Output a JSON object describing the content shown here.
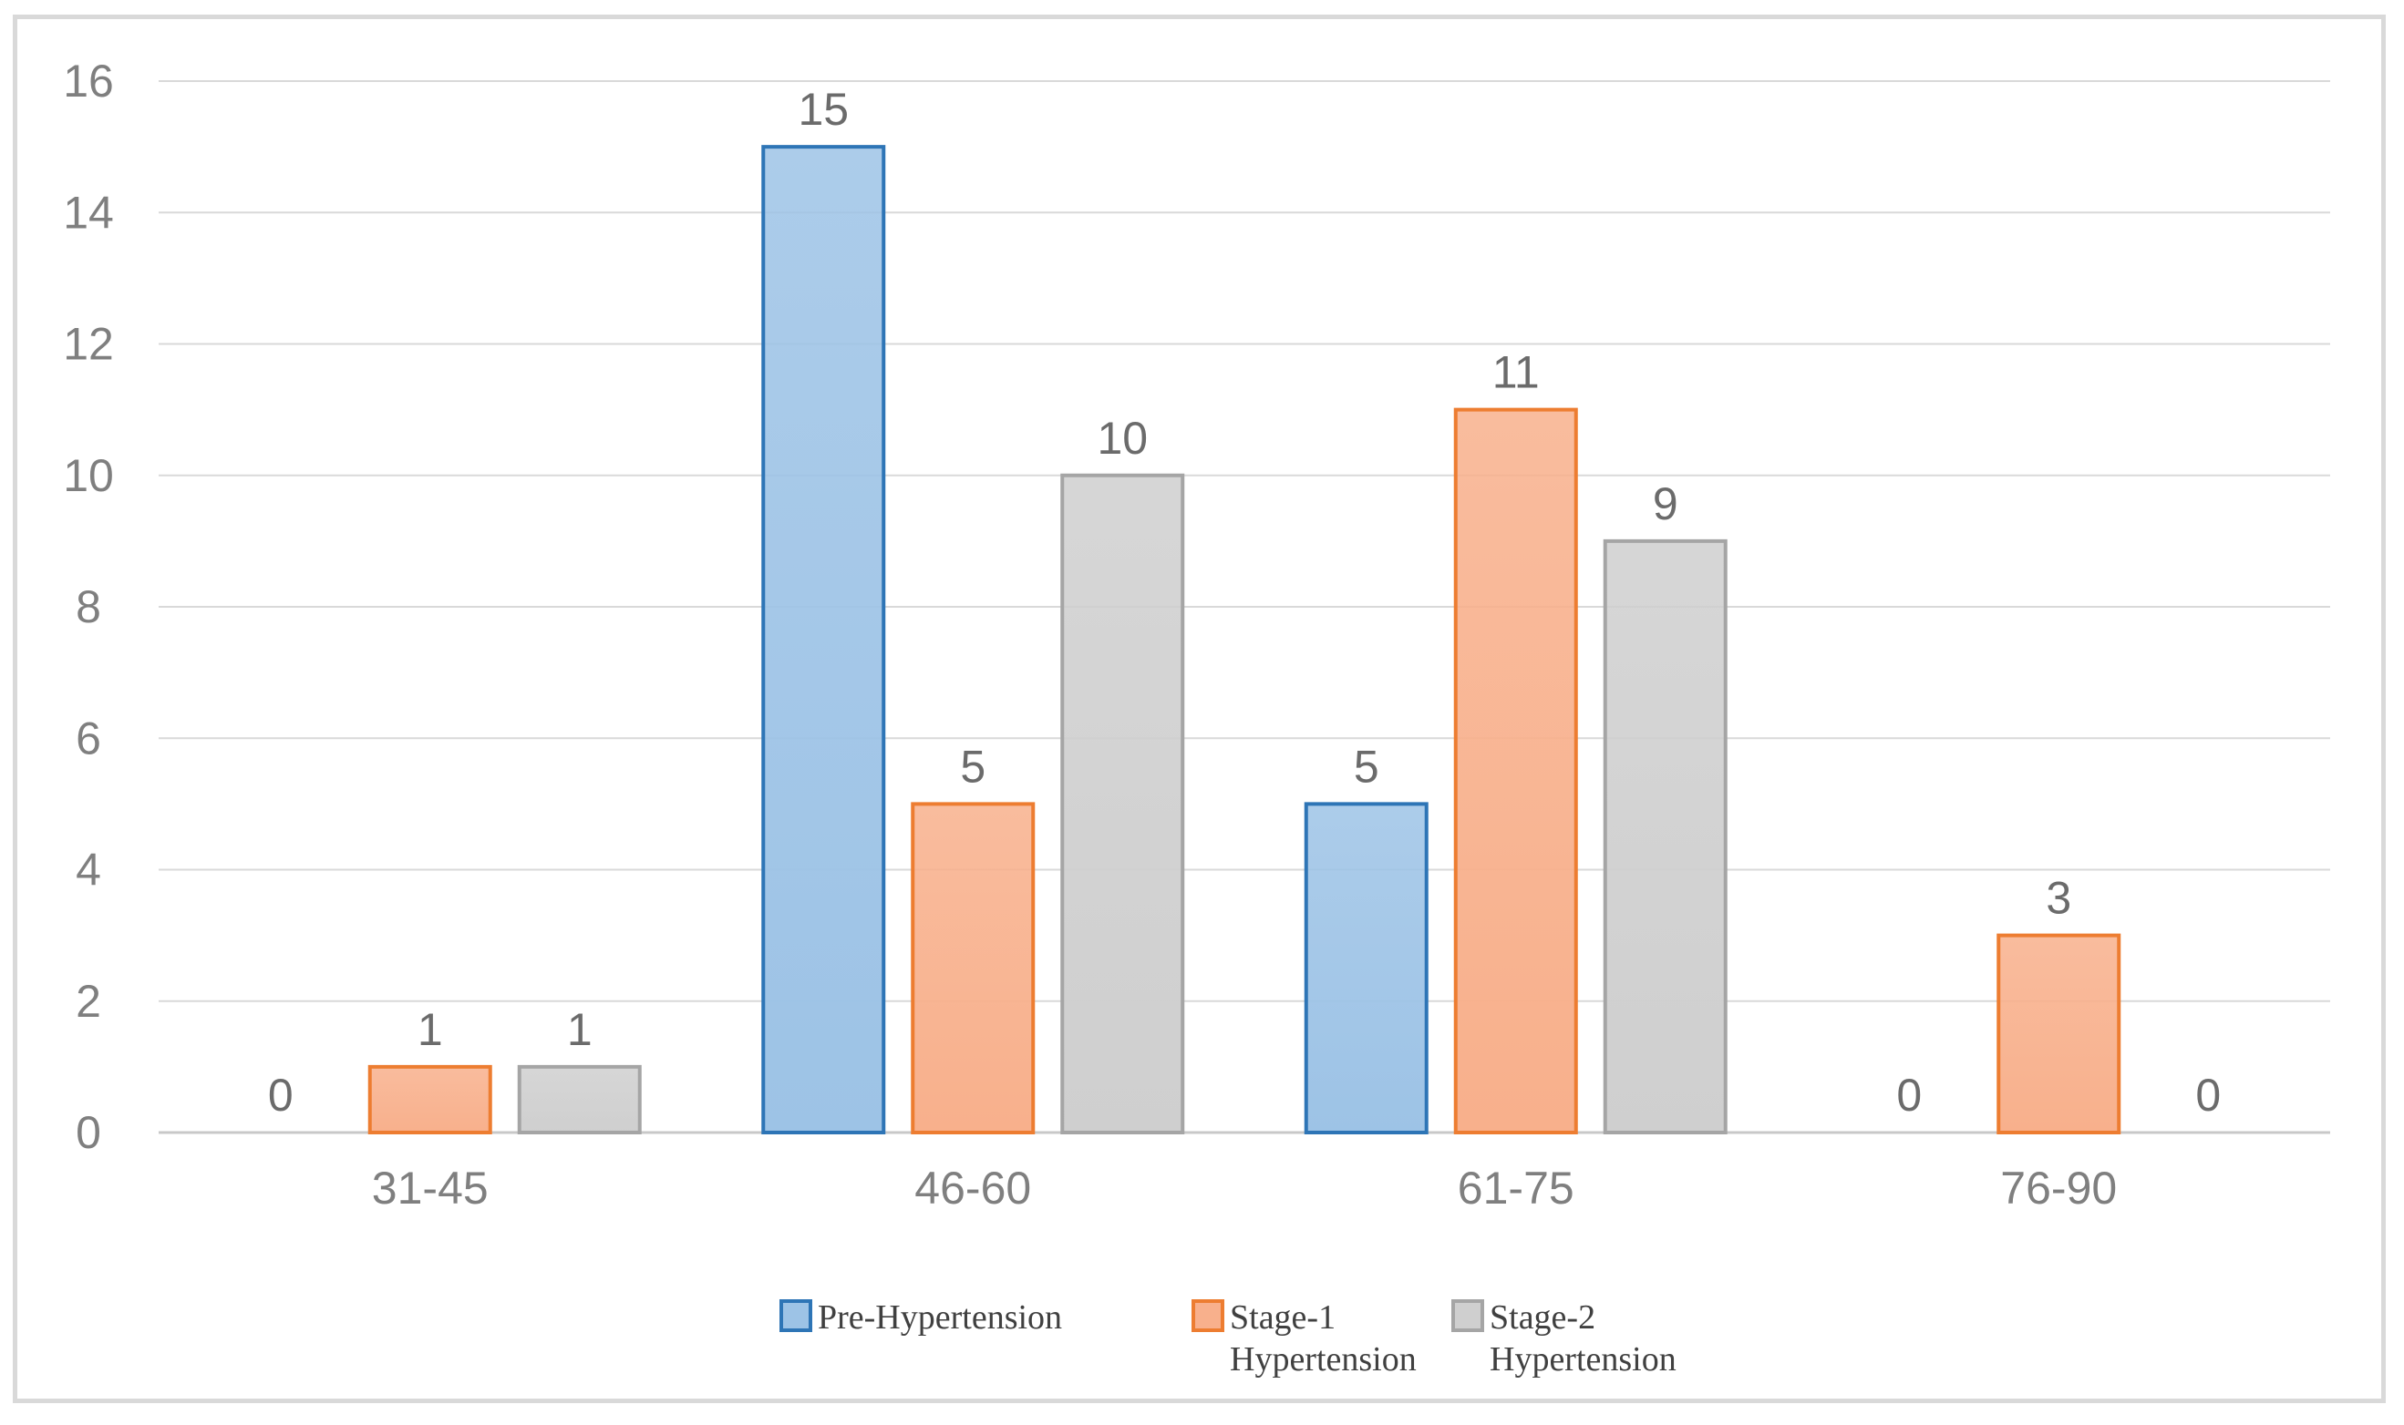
{
  "chart_data": {
    "type": "bar",
    "title": "",
    "xlabel": "",
    "ylabel": "",
    "categories": [
      "31-45",
      "46-60",
      "61-75",
      "76-90"
    ],
    "ylim": [
      0,
      16
    ],
    "yticks": [
      "0",
      "2",
      "4",
      "6",
      "8",
      "10",
      "12",
      "14",
      "16"
    ],
    "grid": true,
    "legend_position": "bottom",
    "series": [
      {
        "name": "Pre-Hypertension",
        "name_lines": [
          "Pre-Hypertension"
        ],
        "values": [
          0,
          15,
          5,
          0
        ],
        "color": "#9dc3e6",
        "border": "#2e75b6"
      },
      {
        "name": "Stage-1 Hypertension",
        "name_lines": [
          "Stage-1",
          "Hypertension"
        ],
        "values": [
          1,
          5,
          11,
          3
        ],
        "color": "#f8b08c",
        "border": "#ed7d31"
      },
      {
        "name": "Stage-2 Hypertension",
        "name_lines": [
          "Stage-2",
          "Hypertension"
        ],
        "values": [
          1,
          10,
          9,
          0
        ],
        "color": "#cfcfcf",
        "border": "#a5a5a5"
      }
    ]
  }
}
